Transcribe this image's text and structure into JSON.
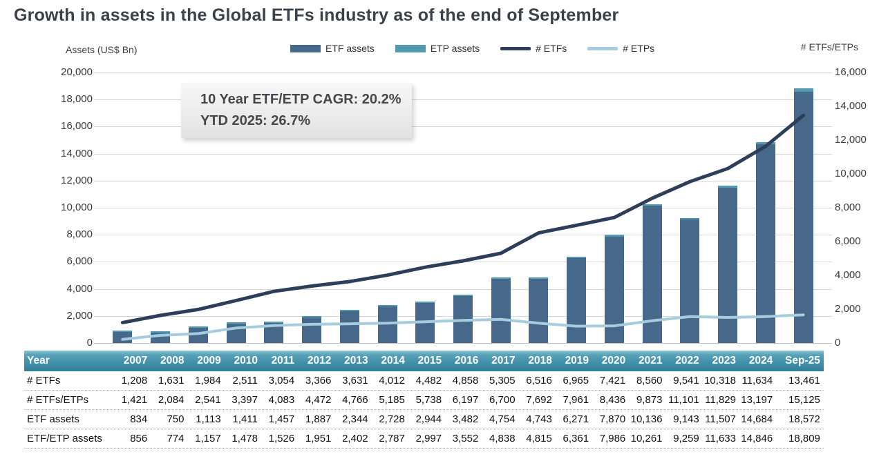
{
  "title": "Growth in assets in the Global ETFs industry as of the end of September",
  "axes": {
    "left_label": "Assets (US$ Bn)",
    "right_label": "# ETFs/ETPs"
  },
  "legend": [
    {
      "label": "ETF assets",
      "type": "bar",
      "color": "#45688b"
    },
    {
      "label": "ETP assets",
      "type": "bar",
      "color": "#539ab1"
    },
    {
      "label": "# ETFs",
      "type": "line",
      "color": "#2c3e59"
    },
    {
      "label": "# ETPs",
      "type": "line",
      "color": "#a5cddd"
    }
  ],
  "annotation": {
    "line1": "10 Year ETF/ETP CAGR: 20.2%",
    "line2": "YTD 2025: 26.7%"
  },
  "chart_data": {
    "type": "bar+line combo (stacked bars on left axis, lines on right axis)",
    "categories": [
      "2007",
      "2008",
      "2009",
      "2010",
      "2011",
      "2012",
      "2013",
      "2014",
      "2015",
      "2016",
      "2017",
      "2018",
      "2019",
      "2020",
      "2021",
      "2022",
      "2023",
      "2024",
      "Sep-25"
    ],
    "left_axis": {
      "label": "Assets (US$ Bn)",
      "min": 0,
      "max": 20000,
      "tick_step": 2000
    },
    "right_axis": {
      "label": "# ETFs/ETPs",
      "min": 0,
      "max": 16000,
      "tick_step": 2000
    },
    "series": [
      {
        "name": "ETF assets",
        "type": "bar",
        "axis": "left",
        "color": "#45688b",
        "values": [
          834,
          750,
          1113,
          1411,
          1457,
          1887,
          2344,
          2728,
          2944,
          3482,
          4754,
          4743,
          6271,
          7870,
          10136,
          9143,
          11507,
          14684,
          18572
        ]
      },
      {
        "name": "ETP assets (stacked on top; ETF/ETP total minus ETF assets)",
        "type": "bar",
        "axis": "left",
        "color": "#539ab1",
        "values": [
          22,
          24,
          44,
          67,
          69,
          64,
          58,
          59,
          53,
          70,
          84,
          72,
          90,
          116,
          125,
          116,
          126,
          162,
          237
        ]
      },
      {
        "name": "# ETFs",
        "type": "line",
        "axis": "right",
        "color": "#2c3e59",
        "values": [
          1208,
          1631,
          1984,
          2511,
          3054,
          3366,
          3631,
          4012,
          4482,
          4858,
          5305,
          6516,
          6965,
          7421,
          8560,
          9541,
          10318,
          11634,
          13461
        ]
      },
      {
        "name": "# ETPs (ETFs/ETPs total minus # ETFs)",
        "type": "line",
        "axis": "right",
        "color": "#a5cddd",
        "values": [
          213,
          453,
          557,
          886,
          1029,
          1106,
          1135,
          1173,
          1256,
          1339,
          1395,
          1176,
          996,
          1015,
          1313,
          1560,
          1511,
          1563,
          1664
        ]
      }
    ],
    "etf_etp_assets_total": [
      856,
      774,
      1157,
      1478,
      1526,
      1951,
      2402,
      2787,
      2997,
      3552,
      4838,
      4815,
      6361,
      7986,
      10261,
      9259,
      11633,
      14846,
      18809
    ],
    "num_etfs_etps_total": [
      1421,
      2084,
      2541,
      3397,
      4083,
      4472,
      4766,
      5185,
      5738,
      6197,
      6700,
      7692,
      7961,
      8436,
      9873,
      11101,
      11829,
      13197,
      15125
    ],
    "grid": true,
    "legend_position": "top-center"
  },
  "table": {
    "header": [
      "Year",
      "2007",
      "2008",
      "2009",
      "2010",
      "2011",
      "2012",
      "2013",
      "2014",
      "2015",
      "2016",
      "2017",
      "2018",
      "2019",
      "2020",
      "2021",
      "2022",
      "2023",
      "2024",
      "Sep-25"
    ],
    "rows": [
      {
        "label": "# ETFs",
        "values": [
          "1,208",
          "1,631",
          "1,984",
          "2,511",
          "3,054",
          "3,366",
          "3,631",
          "4,012",
          "4,482",
          "4,858",
          "5,305",
          "6,516",
          "6,965",
          "7,421",
          "8,560",
          "9,541",
          "10,318",
          "11,634",
          "13,461"
        ]
      },
      {
        "label": "# ETFs/ETPs",
        "values": [
          "1,421",
          "2,084",
          "2,541",
          "3,397",
          "4,083",
          "4,472",
          "4,766",
          "5,185",
          "5,738",
          "6,197",
          "6,700",
          "7,692",
          "7,961",
          "8,436",
          "9,873",
          "11,101",
          "11,829",
          "13,197",
          "15,125"
        ]
      },
      {
        "label": "ETF assets",
        "values": [
          "834",
          "750",
          "1,113",
          "1,411",
          "1,457",
          "1,887",
          "2,344",
          "2,728",
          "2,944",
          "3,482",
          "4,754",
          "4,743",
          "6,271",
          "7,870",
          "10,136",
          "9,143",
          "11,507",
          "14,684",
          "18,572"
        ]
      },
      {
        "label": "ETF/ETP assets",
        "values": [
          "856",
          "774",
          "1,157",
          "1,478",
          "1,526",
          "1,951",
          "2,402",
          "2,787",
          "2,997",
          "3,552",
          "4,838",
          "4,815",
          "6,361",
          "7,986",
          "10,261",
          "9,259",
          "11,633",
          "14,846",
          "18,809"
        ]
      }
    ]
  }
}
